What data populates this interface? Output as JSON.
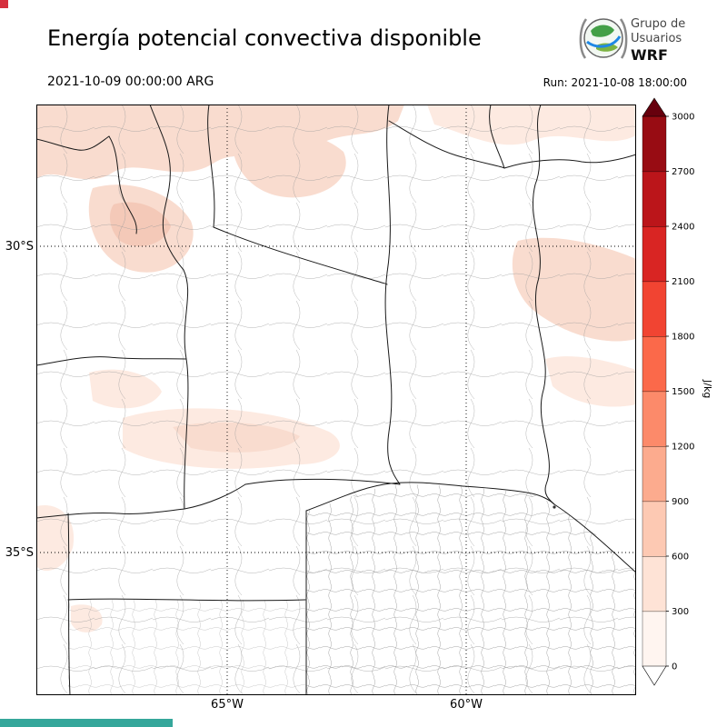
{
  "header": {
    "title": "Energía potencial convectiva disponible",
    "valid_time": "2021-10-09 00:00:00 ARG",
    "run_label": "Run: 2021-10-08 18:00:00",
    "logo": {
      "line1": "Grupo de",
      "line2": "Usuarios",
      "line3": "WRF"
    }
  },
  "map": {
    "lat_ticks": [
      "30°S",
      "35°S"
    ],
    "lon_ticks": [
      "65°W",
      "60°W"
    ],
    "shade_colors": [
      "#fdeae1",
      "#f9dccf",
      "#f4c9b8"
    ]
  },
  "colorbar": {
    "units": "J/kg",
    "ticks": [
      0,
      300,
      600,
      900,
      1200,
      1500,
      1800,
      2100,
      2400,
      2700,
      3000
    ],
    "colors_bottom_to_top": [
      "#fff5f0",
      "#fee3d6",
      "#fdc9b3",
      "#fcab8e",
      "#fc8a6a",
      "#fb694a",
      "#f14432",
      "#d92523",
      "#bb151a",
      "#980c13"
    ],
    "over_color": "#67000d",
    "under_color": "#ffffff"
  },
  "decor": {
    "top_left_mark_color": "#d62f3e",
    "bottom_bar_color": "#35a79b"
  },
  "chart_data": {
    "type": "heatmap",
    "title": "Energía potencial convectiva disponible",
    "variable": "CAPE",
    "units": "J/kg",
    "valid_time": "2021-10-09 00:00:00 ARG",
    "model_run": "Run: 2021-10-08 18:00:00",
    "levels": [
      0,
      300,
      600,
      900,
      1200,
      1500,
      1800,
      2100,
      2400,
      2700,
      3000
    ],
    "colormap": "Reds (white to dark red), over/under arrows on colorbar",
    "gridlines": {
      "lat": [
        "30°S",
        "35°S"
      ],
      "lon": [
        "65°W",
        "60°W"
      ]
    },
    "legend_position": "right vertical colorbar",
    "observed_fields": [
      {
        "region": "band across northern edge of domain",
        "cape_range": "0-600 J/kg"
      },
      {
        "region": "northeast corner patches",
        "cape_range": "0-600 J/kg"
      },
      {
        "region": "northwest patch near 30S",
        "cape_range": "0-600 J/kg"
      },
      {
        "region": "scattered central patches",
        "cape_range": "0-300 J/kg"
      },
      {
        "region": "rest of domain (center and south)",
        "cape_range": "~0 J/kg"
      }
    ]
  }
}
